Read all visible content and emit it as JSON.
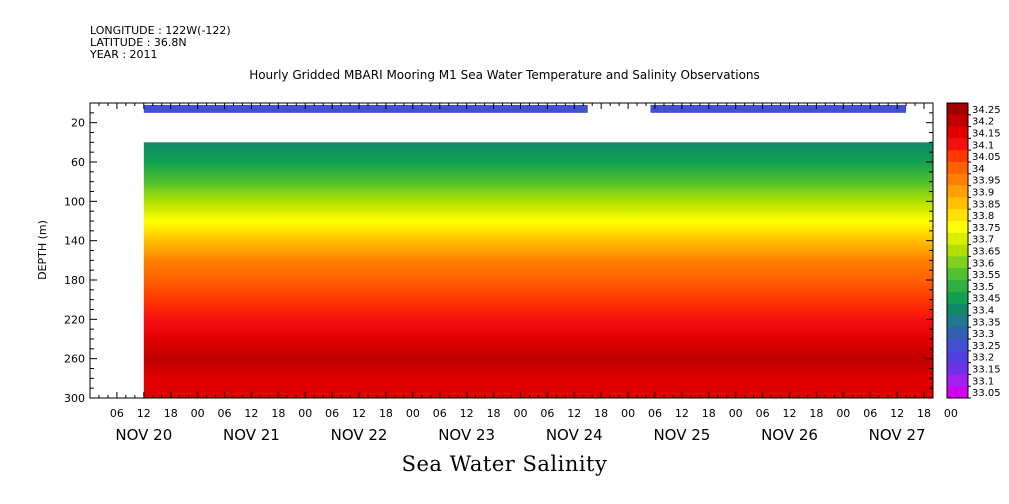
{
  "header": {
    "longitude": "LONGITUDE : 122W(-122)",
    "latitude": "LATITUDE : 36.8N",
    "year": "YEAR : 2011"
  },
  "chart_title": "Hourly Gridded MBARI Mooring M1 Sea Water Temperature and Salinity Observations",
  "main_title": "Sea Water Salinity",
  "chart_data": {
    "type": "heatmap",
    "variable": "Sea Water Salinity",
    "ylabel": "DEPTH (m)",
    "ylim": [
      300,
      0
    ],
    "y_ticks": [
      20,
      60,
      100,
      140,
      180,
      220,
      260,
      300
    ],
    "x_hour_ticks": [
      "06",
      "12",
      "18",
      "00",
      "06",
      "12",
      "18",
      "00",
      "06",
      "12",
      "18",
      "00",
      "06",
      "12",
      "18",
      "00",
      "06",
      "12",
      "18",
      "00",
      "06",
      "12",
      "18",
      "00",
      "06",
      "12",
      "18",
      "00",
      "06",
      "12",
      "18",
      "00"
    ],
    "x_day_labels": [
      "NOV 20",
      "NOV 21",
      "NOV 22",
      "NOV 23",
      "NOV 24",
      "NOV 25",
      "NOV 26",
      "NOV 27"
    ],
    "colorbar_levels": [
      "34.25",
      "34.2",
      "34.15",
      "34.1",
      "34.05",
      "34",
      "33.95",
      "33.9",
      "33.85",
      "33.8",
      "33.75",
      "33.7",
      "33.65",
      "33.6",
      "33.55",
      "33.5",
      "33.45",
      "33.4",
      "33.35",
      "33.3",
      "33.25",
      "33.2",
      "33.15",
      "33.1",
      "33.05"
    ],
    "colorbar_colors": [
      "#a00000",
      "#c00000",
      "#e00000",
      "#f51010",
      "#ff3800",
      "#ff6000",
      "#ff8000",
      "#ffa000",
      "#ffc000",
      "#ffe000",
      "#ffff00",
      "#d8f000",
      "#b0e000",
      "#80d020",
      "#50c030",
      "#30b040",
      "#10a050",
      "#108868",
      "#207890",
      "#3060b0",
      "#4050d0",
      "#5040e0",
      "#7030e8",
      "#a020f0",
      "#d000f0"
    ],
    "surface_band": [
      {
        "start_hour": 12,
        "end_hour": 111,
        "salinity": 33.25
      },
      {
        "start_hour": 125,
        "end_hour": 182,
        "salinity": 33.25
      }
    ],
    "salinity_by_depth_m": {
      "40": 33.4,
      "60": 33.45,
      "80": 33.55,
      "100": 33.65,
      "120": 33.75,
      "140": 33.85,
      "160": 33.95,
      "180": 34.0,
      "200": 34.05,
      "220": 34.1,
      "240": 34.15,
      "260": 34.2,
      "280": 34.15,
      "300": 34.15
    }
  }
}
